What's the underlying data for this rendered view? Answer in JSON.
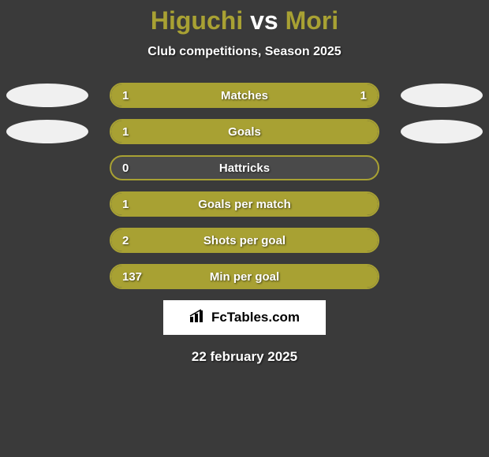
{
  "title": {
    "player1": "Higuchi",
    "vs": "vs",
    "player2": "Mori",
    "player1_color": "#a8a133",
    "vs_color": "#ffffff",
    "player2_color": "#a8a133"
  },
  "subtitle": "Club competitions, Season 2025",
  "background_color": "#3a3a3a",
  "bar_fill_color": "#a8a133",
  "bar_bg_color": "#4a4a4a",
  "bar_border_color": "#a8a133",
  "ellipse_color": "#f0f0f0",
  "stats": [
    {
      "label": "Matches",
      "left_value": "1",
      "right_value": "1",
      "fill_percent": 100,
      "show_left_ellipse": true,
      "show_right_ellipse": true,
      "show_right_value": true
    },
    {
      "label": "Goals",
      "left_value": "1",
      "right_value": "",
      "fill_percent": 100,
      "show_left_ellipse": true,
      "show_right_ellipse": true,
      "show_right_value": false
    },
    {
      "label": "Hattricks",
      "left_value": "0",
      "right_value": "",
      "fill_percent": 0,
      "show_left_ellipse": false,
      "show_right_ellipse": false,
      "show_right_value": false
    },
    {
      "label": "Goals per match",
      "left_value": "1",
      "right_value": "",
      "fill_percent": 100,
      "show_left_ellipse": false,
      "show_right_ellipse": false,
      "show_right_value": false
    },
    {
      "label": "Shots per goal",
      "left_value": "2",
      "right_value": "",
      "fill_percent": 100,
      "show_left_ellipse": false,
      "show_right_ellipse": false,
      "show_right_value": false
    },
    {
      "label": "Min per goal",
      "left_value": "137",
      "right_value": "",
      "fill_percent": 100,
      "show_left_ellipse": false,
      "show_right_ellipse": false,
      "show_right_value": false
    }
  ],
  "logo": {
    "icon": "📊",
    "text": "FcTables.com"
  },
  "date": "22 february 2025"
}
